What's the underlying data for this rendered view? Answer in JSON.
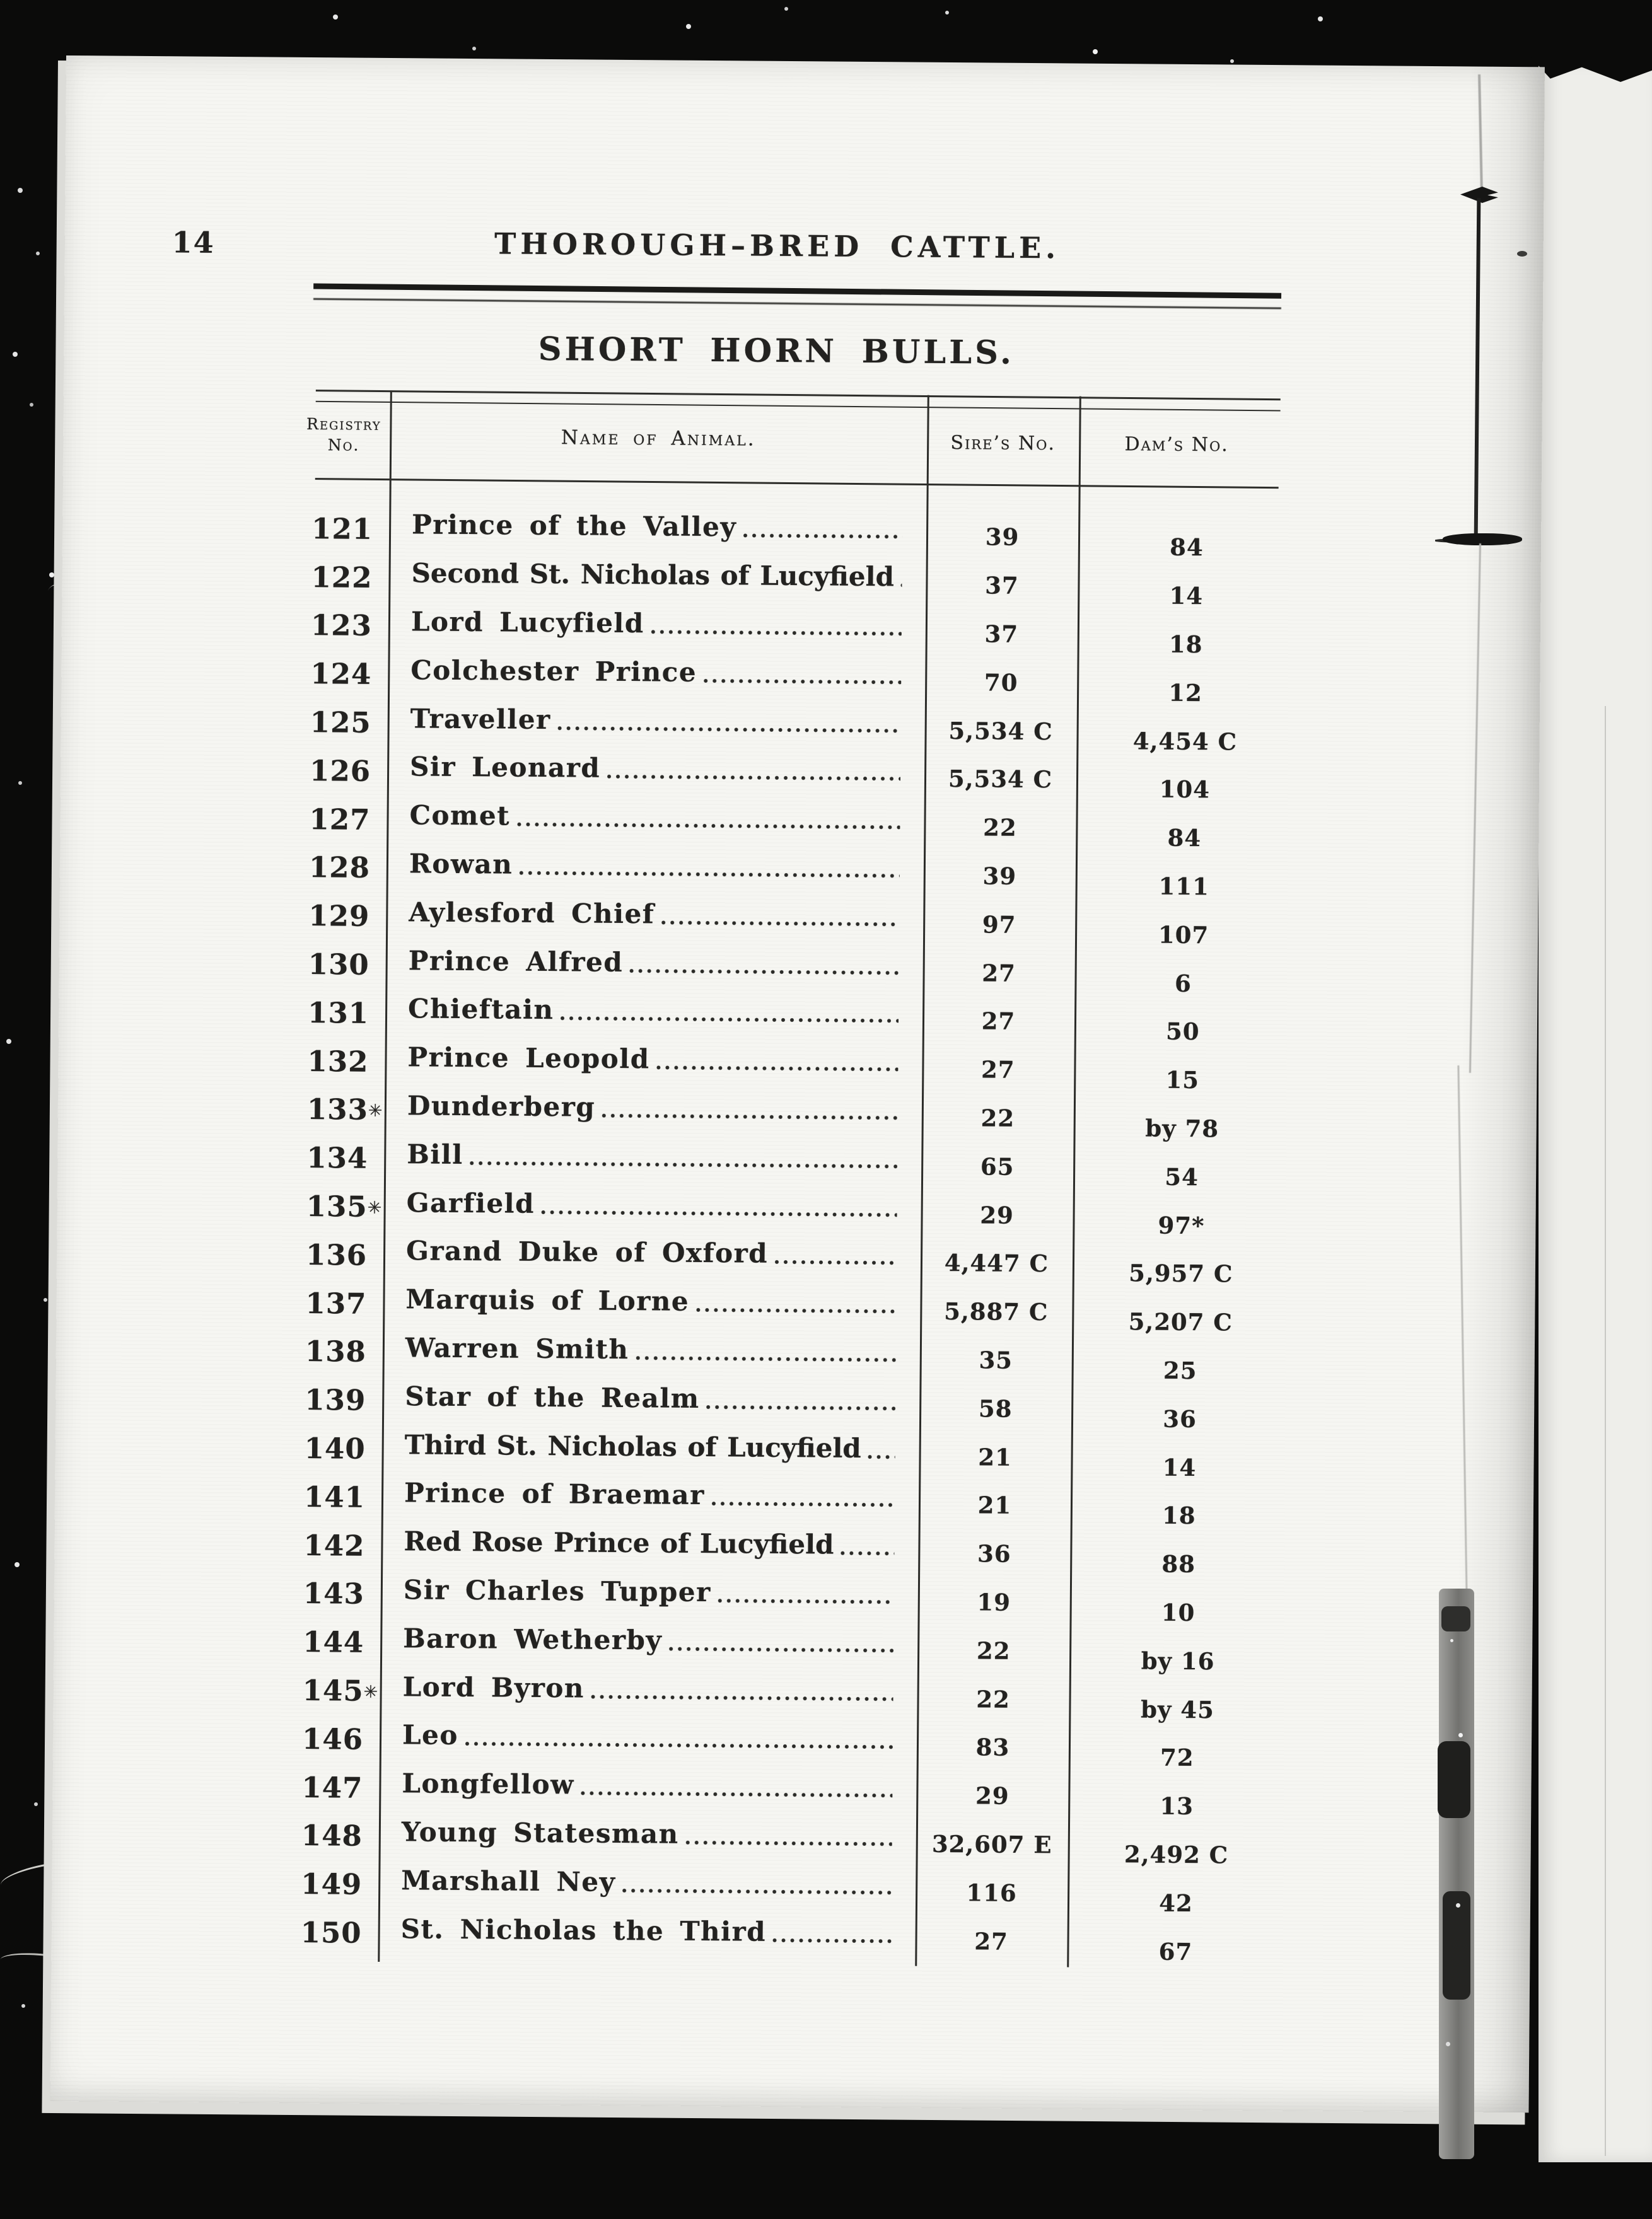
{
  "page": {
    "number": "14",
    "header_title": "THOROUGH–BRED CATTLE.",
    "section_title": "SHORT HORN BULLS."
  },
  "table": {
    "columns": {
      "registry": "Registry No.",
      "name": "Name of Animal.",
      "sire": "Sire’s No.",
      "dam": "Dam’s No."
    },
    "rows": [
      {
        "registry": "121",
        "mark": "",
        "name": "Prince of the Valley",
        "sire": "39",
        "dam": "84"
      },
      {
        "registry": "122",
        "mark": "",
        "name": "Second St. Nicholas of Lucyfield",
        "sire": "37",
        "dam": "14"
      },
      {
        "registry": "123",
        "mark": "",
        "name": "Lord Lucyfield",
        "sire": "37",
        "dam": "18"
      },
      {
        "registry": "124",
        "mark": "",
        "name": "Colchester Prince",
        "sire": "70",
        "dam": "12"
      },
      {
        "registry": "125",
        "mark": "",
        "name": "Traveller",
        "sire": "5,534 C",
        "dam": "4,454 C"
      },
      {
        "registry": "126",
        "mark": "",
        "name": "Sir Leonard",
        "sire": "5,534 C",
        "dam": "104"
      },
      {
        "registry": "127",
        "mark": "",
        "name": "Comet",
        "sire": "22",
        "dam": "84"
      },
      {
        "registry": "128",
        "mark": "",
        "name": "Rowan",
        "sire": "39",
        "dam": "111"
      },
      {
        "registry": "129",
        "mark": "",
        "name": "Aylesford Chief",
        "sire": "97",
        "dam": "107"
      },
      {
        "registry": "130",
        "mark": "",
        "name": "Prince Alfred",
        "sire": "27",
        "dam": "6"
      },
      {
        "registry": "131",
        "mark": "",
        "name": "Chieftain",
        "sire": "27",
        "dam": "50"
      },
      {
        "registry": "132",
        "mark": "",
        "name": "Prince Leopold",
        "sire": "27",
        "dam": "15"
      },
      {
        "registry": "133",
        "mark": "✳",
        "name": "Dunderberg",
        "sire": "22",
        "dam": "by 78"
      },
      {
        "registry": "134",
        "mark": "",
        "name": "Bill",
        "sire": "65",
        "dam": "54"
      },
      {
        "registry": "135",
        "mark": "✳",
        "name": "Garfield",
        "sire": "29",
        "dam": "97*"
      },
      {
        "registry": "136",
        "mark": "",
        "name": "Grand Duke of Oxford",
        "sire": "4,447 C",
        "dam": "5,957 C"
      },
      {
        "registry": "137",
        "mark": "",
        "name": "Marquis of Lorne",
        "sire": "5,887 C",
        "dam": "5,207 C"
      },
      {
        "registry": "138",
        "mark": "",
        "name": "Warren Smith",
        "sire": "35",
        "dam": "25"
      },
      {
        "registry": "139",
        "mark": "",
        "name": "Star of the Realm",
        "sire": "58",
        "dam": "36"
      },
      {
        "registry": "140",
        "mark": "",
        "name": "Third St. Nicholas of Lucyfield",
        "sire": "21",
        "dam": "14"
      },
      {
        "registry": "141",
        "mark": "",
        "name": "Prince of Braemar",
        "sire": "21",
        "dam": "18"
      },
      {
        "registry": "142",
        "mark": "",
        "name": "Red Rose Prince of Lucyfield",
        "sire": "36",
        "dam": "88"
      },
      {
        "registry": "143",
        "mark": "",
        "name": "Sir Charles Tupper",
        "sire": "19",
        "dam": "10"
      },
      {
        "registry": "144",
        "mark": "",
        "name": "Baron Wetherby",
        "sire": "22",
        "dam": "by 16"
      },
      {
        "registry": "145",
        "mark": "✳",
        "name": "Lord Byron",
        "sire": "22",
        "dam": "by 45"
      },
      {
        "registry": "146",
        "mark": "",
        "name": "Leo",
        "sire": "83",
        "dam": "72"
      },
      {
        "registry": "147",
        "mark": "",
        "name": "Longfellow",
        "sire": "29",
        "dam": "13"
      },
      {
        "registry": "148",
        "mark": "",
        "name": "Young Statesman",
        "sire": "32,607 E",
        "dam": "2,492 C"
      },
      {
        "registry": "149",
        "mark": "",
        "name": "Marshall Ney",
        "sire": "116",
        "dam": "42"
      },
      {
        "registry": "150",
        "mark": "",
        "name": "St. Nicholas the Third",
        "sire": "27",
        "dam": "67"
      }
    ]
  }
}
